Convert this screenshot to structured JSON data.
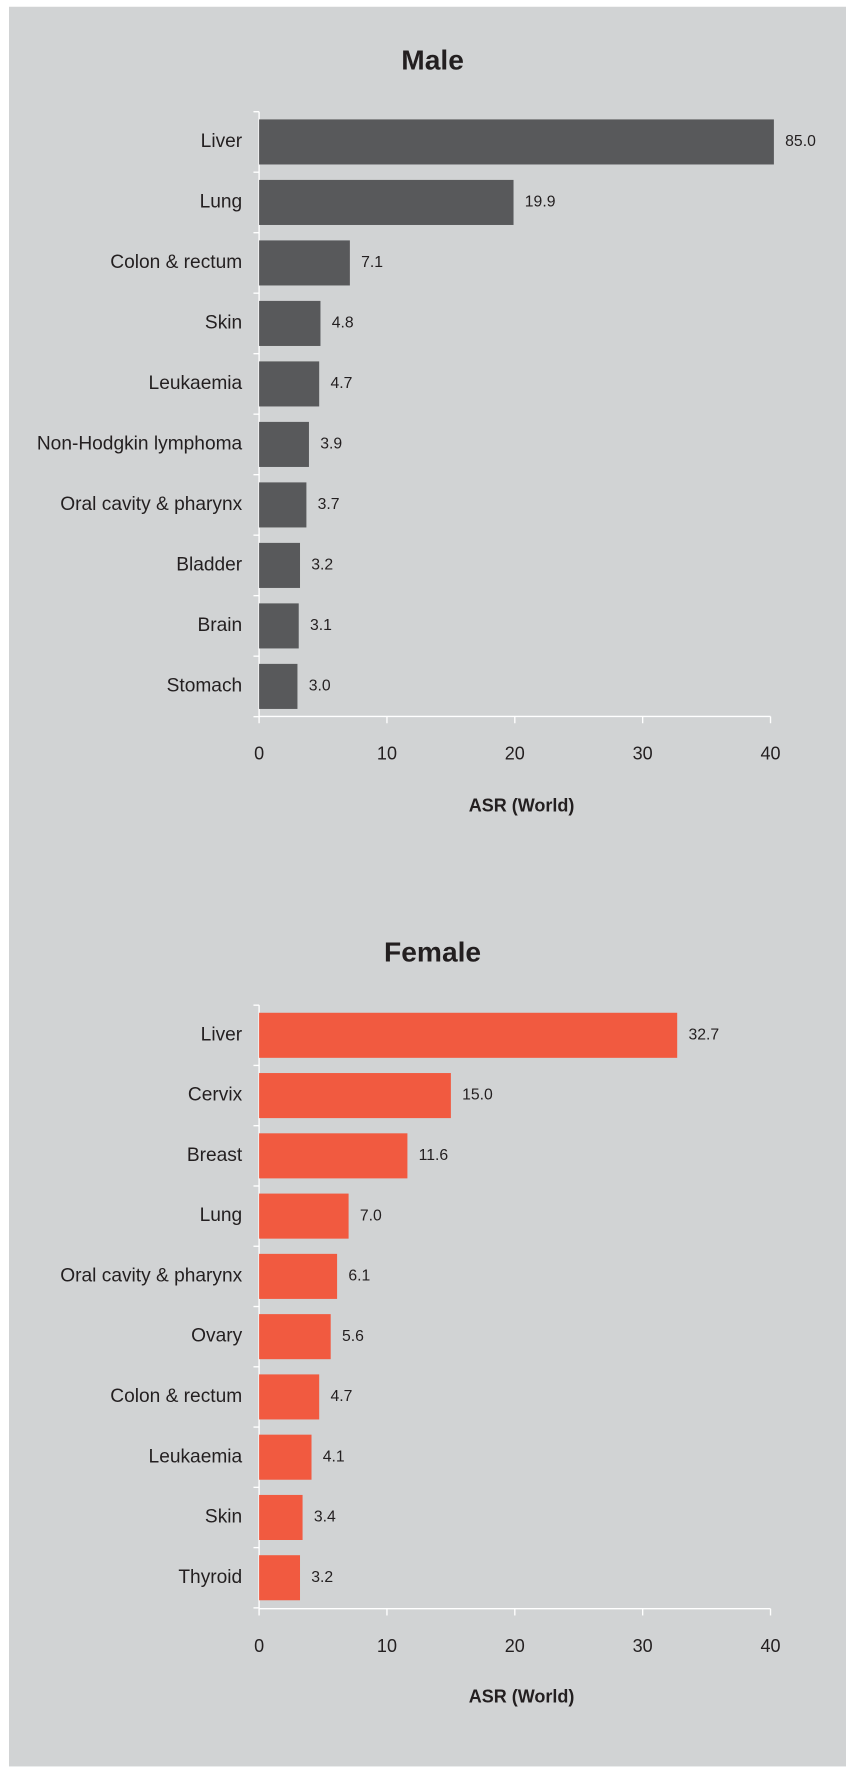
{
  "chart_data": [
    {
      "type": "bar",
      "orientation": "horizontal",
      "title": "Male",
      "x_label": "ASR (World)",
      "categories": [
        "Liver",
        "Lung",
        "Colon & rectum",
        "Skin",
        "Leukaemia",
        "Non-Hodgkin lymphoma",
        "Oral cavity & pharynx",
        "Bladder",
        "Brain",
        "Stomach"
      ],
      "values": [
        85.0,
        19.9,
        7.1,
        4.8,
        4.7,
        3.9,
        3.7,
        3.2,
        3.1,
        3.0
      ],
      "value_labels": [
        "85.0",
        "19.9",
        "7.1",
        "4.8",
        "4.7",
        "3.9",
        "3.7",
        "3.2",
        "3.1",
        "3.0"
      ],
      "color": "#58595b",
      "xlim": [
        0,
        40
      ],
      "xticks": [
        0,
        10,
        20,
        30,
        40
      ]
    },
    {
      "type": "bar",
      "orientation": "horizontal",
      "title": "Female",
      "x_label": "ASR (World)",
      "categories": [
        "Liver",
        "Cervix",
        "Breast",
        "Lung",
        "Oral cavity & pharynx",
        "Ovary",
        "Colon & rectum",
        "Leukaemia",
        "Skin",
        "Thyroid"
      ],
      "values": [
        32.7,
        15.0,
        11.6,
        7.0,
        6.1,
        5.6,
        4.7,
        4.1,
        3.4,
        3.2
      ],
      "value_labels": [
        "32.7",
        "15.0",
        "11.6",
        "7.0",
        "6.1",
        "5.6",
        "4.7",
        "4.1",
        "3.4",
        "3.2"
      ],
      "color": "#f15a40",
      "xlim": [
        0,
        40
      ],
      "xticks": [
        0,
        10,
        20,
        30,
        40
      ]
    }
  ]
}
